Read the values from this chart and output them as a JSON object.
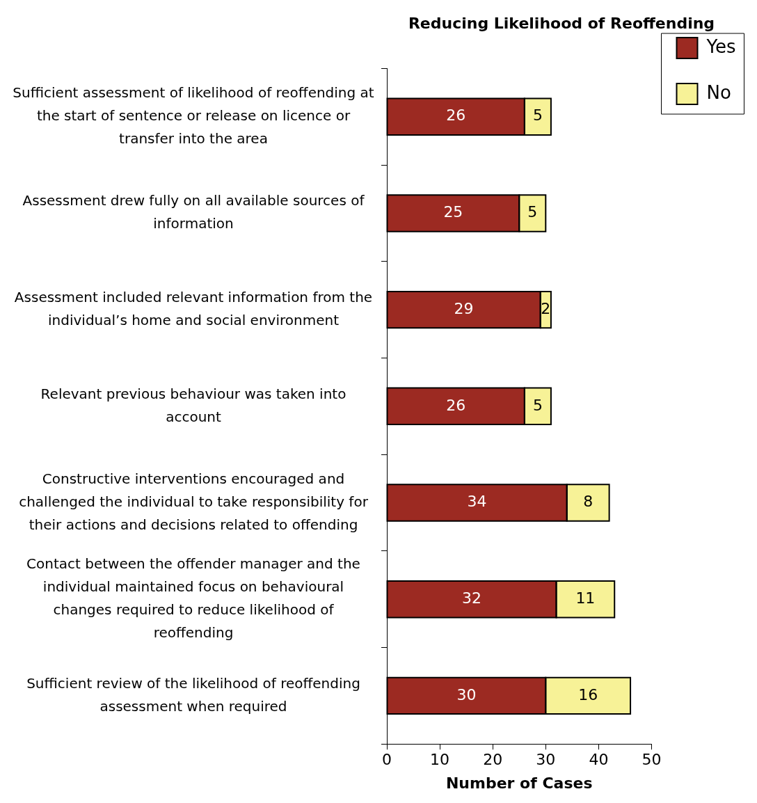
{
  "chart_data": {
    "type": "bar",
    "orientation": "horizontal",
    "stacked": true,
    "title": "Reducing Likelihood of Reoffending",
    "xlabel": "Number of Cases",
    "categories": [
      "Sufficient assessment of likelihood of reoffending at the start of sentence or release on licence or transfer into the area",
      "Assessment drew fully on all available sources of information",
      "Assessment included relevant information from the individual’s home and social environment",
      "Relevant previous behaviour was taken into account",
      "Constructive interventions encouraged and challenged the individual to take responsibility for their actions and decisions related to offending",
      "Contact between the offender manager and the individual maintained focus on behavioural changes required to reduce likelihood of reoffending",
      "Sufficient review of the likelihood of reoffending assessment when required"
    ],
    "series": [
      {
        "name": "Yes",
        "color": "#9c2a22",
        "values": [
          26,
          25,
          29,
          26,
          34,
          32,
          30
        ]
      },
      {
        "name": "No",
        "color": "#f7f297",
        "values": [
          5,
          5,
          2,
          5,
          8,
          11,
          16
        ]
      }
    ],
    "xlim": [
      0,
      50
    ],
    "xticks": [
      0,
      10,
      20,
      30,
      40,
      50
    ],
    "data_labels": true,
    "legend": "top right",
    "grid": false
  }
}
